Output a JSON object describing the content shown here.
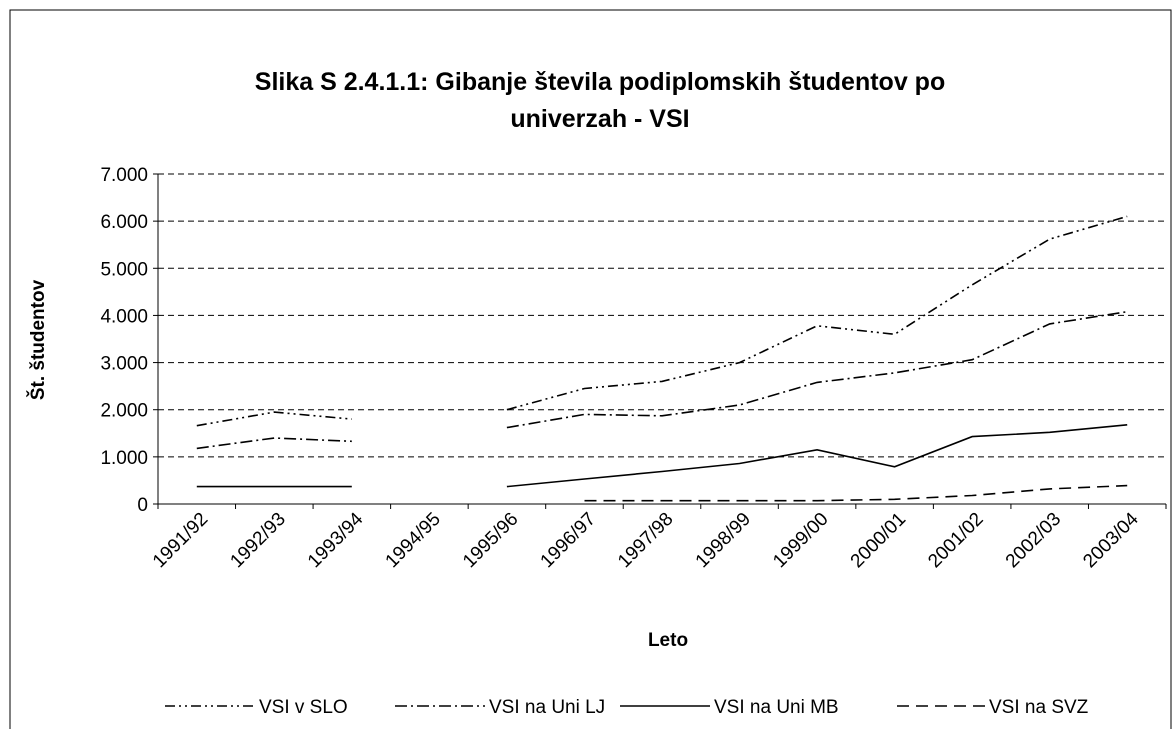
{
  "chart_data": {
    "type": "line",
    "title": [
      "Slika S 2.4.1.1: Gibanje števila podiplomskih študentov po",
      "univerzah - VSI"
    ],
    "x_label": "Leto",
    "y_label": "Št. študentov",
    "categories": [
      "1991/92",
      "1992/93",
      "1993/94",
      "1994/95",
      "1995/96",
      "1996/97",
      "1997/98",
      "1998/99",
      "1999/00",
      "2000/01",
      "2001/02",
      "2002/03",
      "2003/04"
    ],
    "ylim": [
      0,
      7000
    ],
    "yticks": [
      0,
      {
        "value": 1000,
        "label": "1.000"
      },
      {
        "value": 2000,
        "label": "2.000"
      },
      {
        "value": 3000,
        "label": "3.000"
      },
      {
        "value": 4000,
        "label": "4.000"
      },
      {
        "value": 5000,
        "label": "5.000"
      },
      {
        "value": 6000,
        "label": "6.000"
      },
      {
        "value": 7000,
        "label": "7.000"
      }
    ],
    "grid": true,
    "legend": "bottom",
    "series": [
      {
        "name": "VSI v SLO",
        "color": "#000000",
        "dash": "10,4,2,4,2,4",
        "values": [
          1660,
          1950,
          1800,
          null,
          2000,
          2450,
          2600,
          3000,
          3780,
          3600,
          4650,
          5620,
          6100
        ]
      },
      {
        "name": "VSI na Uni LJ",
        "color": "#000000",
        "dash": "12,4,2,4",
        "values": [
          1180,
          1400,
          1330,
          null,
          1620,
          1900,
          1870,
          2100,
          2580,
          2780,
          3060,
          3820,
          4080
        ]
      },
      {
        "name": "VSI na Uni MB",
        "color": "#000000",
        "dash": "none",
        "values": [
          370,
          370,
          370,
          null,
          370,
          530,
          690,
          860,
          1150,
          790,
          1430,
          1520,
          1680
        ]
      },
      {
        "name": "VSI na SVZ",
        "color": "#000000",
        "dash": "12,7",
        "values": [
          null,
          null,
          null,
          null,
          null,
          70,
          70,
          70,
          70,
          100,
          180,
          320,
          390
        ]
      }
    ]
  }
}
